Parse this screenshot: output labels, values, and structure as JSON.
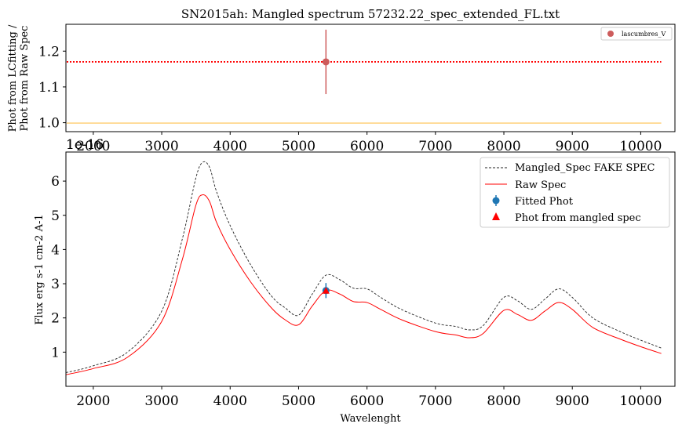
{
  "chart_data": [
    {
      "type": "scatter",
      "title": "SN2015ah: Mangled spectrum 57232.22_spec_extended_FL.txt",
      "ylabel_line1": "Phot from LCfitting /",
      "ylabel_line2": "Phot from Raw Spec",
      "xlim": [
        1600,
        10500
      ],
      "ylim": [
        0.975,
        1.275
      ],
      "x_ticks": [
        2000,
        3000,
        4000,
        5000,
        6000,
        7000,
        8000,
        9000,
        10000
      ],
      "y_ticks": [
        1.0,
        1.1,
        1.2
      ],
      "y_tick_labels": [
        "1.0",
        "1.1",
        "1.2"
      ],
      "points": [
        {
          "x": 5400,
          "y": 1.17,
          "yerr": 0.09
        }
      ],
      "hlines": [
        {
          "y": 1.17,
          "style": "dotted",
          "color": "#ff0000"
        },
        {
          "y": 0.999,
          "style": "solid",
          "color": "#ffc04d"
        }
      ],
      "hline_x_range": [
        1600,
        10300
      ],
      "legend": [
        {
          "label": "lascumbres_V",
          "color": "#cd5c5c"
        }
      ],
      "legend_position": "top-right",
      "marker_color": "#cd5c5c",
      "offset_text": "1e-16"
    },
    {
      "type": "line",
      "xlabel": "Wavelenght",
      "ylabel": "Flux erg s-1 cm-2 A-1",
      "xlim": [
        1600,
        10500
      ],
      "ylim": [
        0,
        6.85
      ],
      "x_ticks": [
        2000,
        3000,
        4000,
        5000,
        6000,
        7000,
        8000,
        9000,
        10000
      ],
      "y_ticks": [
        1,
        2,
        3,
        4,
        5,
        6
      ],
      "x": [
        1600,
        2000,
        2500,
        3000,
        3300,
        3500,
        3600,
        3700,
        3800,
        4000,
        4300,
        4600,
        4800,
        5000,
        5200,
        5400,
        5600,
        5800,
        6000,
        6200,
        6500,
        7000,
        7300,
        7500,
        7700,
        8000,
        8200,
        8400,
        8600,
        8800,
        9000,
        9300,
        9700,
        10000,
        10300
      ],
      "series": [
        {
          "name": "Mangled_Spec FAKE SPEC",
          "color": "#222222",
          "style": "dashed",
          "values": [
            0.4,
            0.6,
            1.0,
            2.2,
            4.3,
            6.1,
            6.55,
            6.4,
            5.7,
            4.7,
            3.55,
            2.65,
            2.3,
            2.08,
            2.7,
            3.25,
            3.12,
            2.87,
            2.85,
            2.6,
            2.25,
            1.85,
            1.75,
            1.65,
            1.78,
            2.6,
            2.5,
            2.25,
            2.55,
            2.85,
            2.6,
            2.0,
            1.6,
            1.35,
            1.12
          ]
        },
        {
          "name": "Raw Spec",
          "color": "#ff0000",
          "style": "solid",
          "values": [
            0.34,
            0.52,
            0.85,
            1.9,
            3.7,
            5.3,
            5.6,
            5.4,
            4.8,
            4.0,
            3.05,
            2.3,
            1.95,
            1.8,
            2.35,
            2.8,
            2.7,
            2.48,
            2.45,
            2.25,
            1.95,
            1.6,
            1.5,
            1.42,
            1.55,
            2.22,
            2.1,
            1.93,
            2.2,
            2.45,
            2.25,
            1.72,
            1.38,
            1.16,
            0.96
          ]
        }
      ],
      "points": [
        {
          "name": "Fitted Phot",
          "x": 5400,
          "y": 2.8,
          "yerr": 0.22,
          "color": "#1f77b4",
          "marker": "circle"
        },
        {
          "name": "Phot from mangled spec",
          "x": 5400,
          "y": 2.8,
          "color": "#ff0000",
          "marker": "triangle"
        }
      ],
      "legend": [
        {
          "label": "Mangled_Spec FAKE SPEC",
          "kind": "dashed",
          "color": "#222222"
        },
        {
          "label": "Raw Spec",
          "kind": "line",
          "color": "#ff0000"
        },
        {
          "label": "Fitted Phot",
          "kind": "errpoint",
          "color": "#1f77b4"
        },
        {
          "label": "Phot from mangled spec",
          "kind": "triangle",
          "color": "#ff0000"
        }
      ],
      "legend_position": "top-right",
      "offset_text": "1e-16"
    }
  ]
}
